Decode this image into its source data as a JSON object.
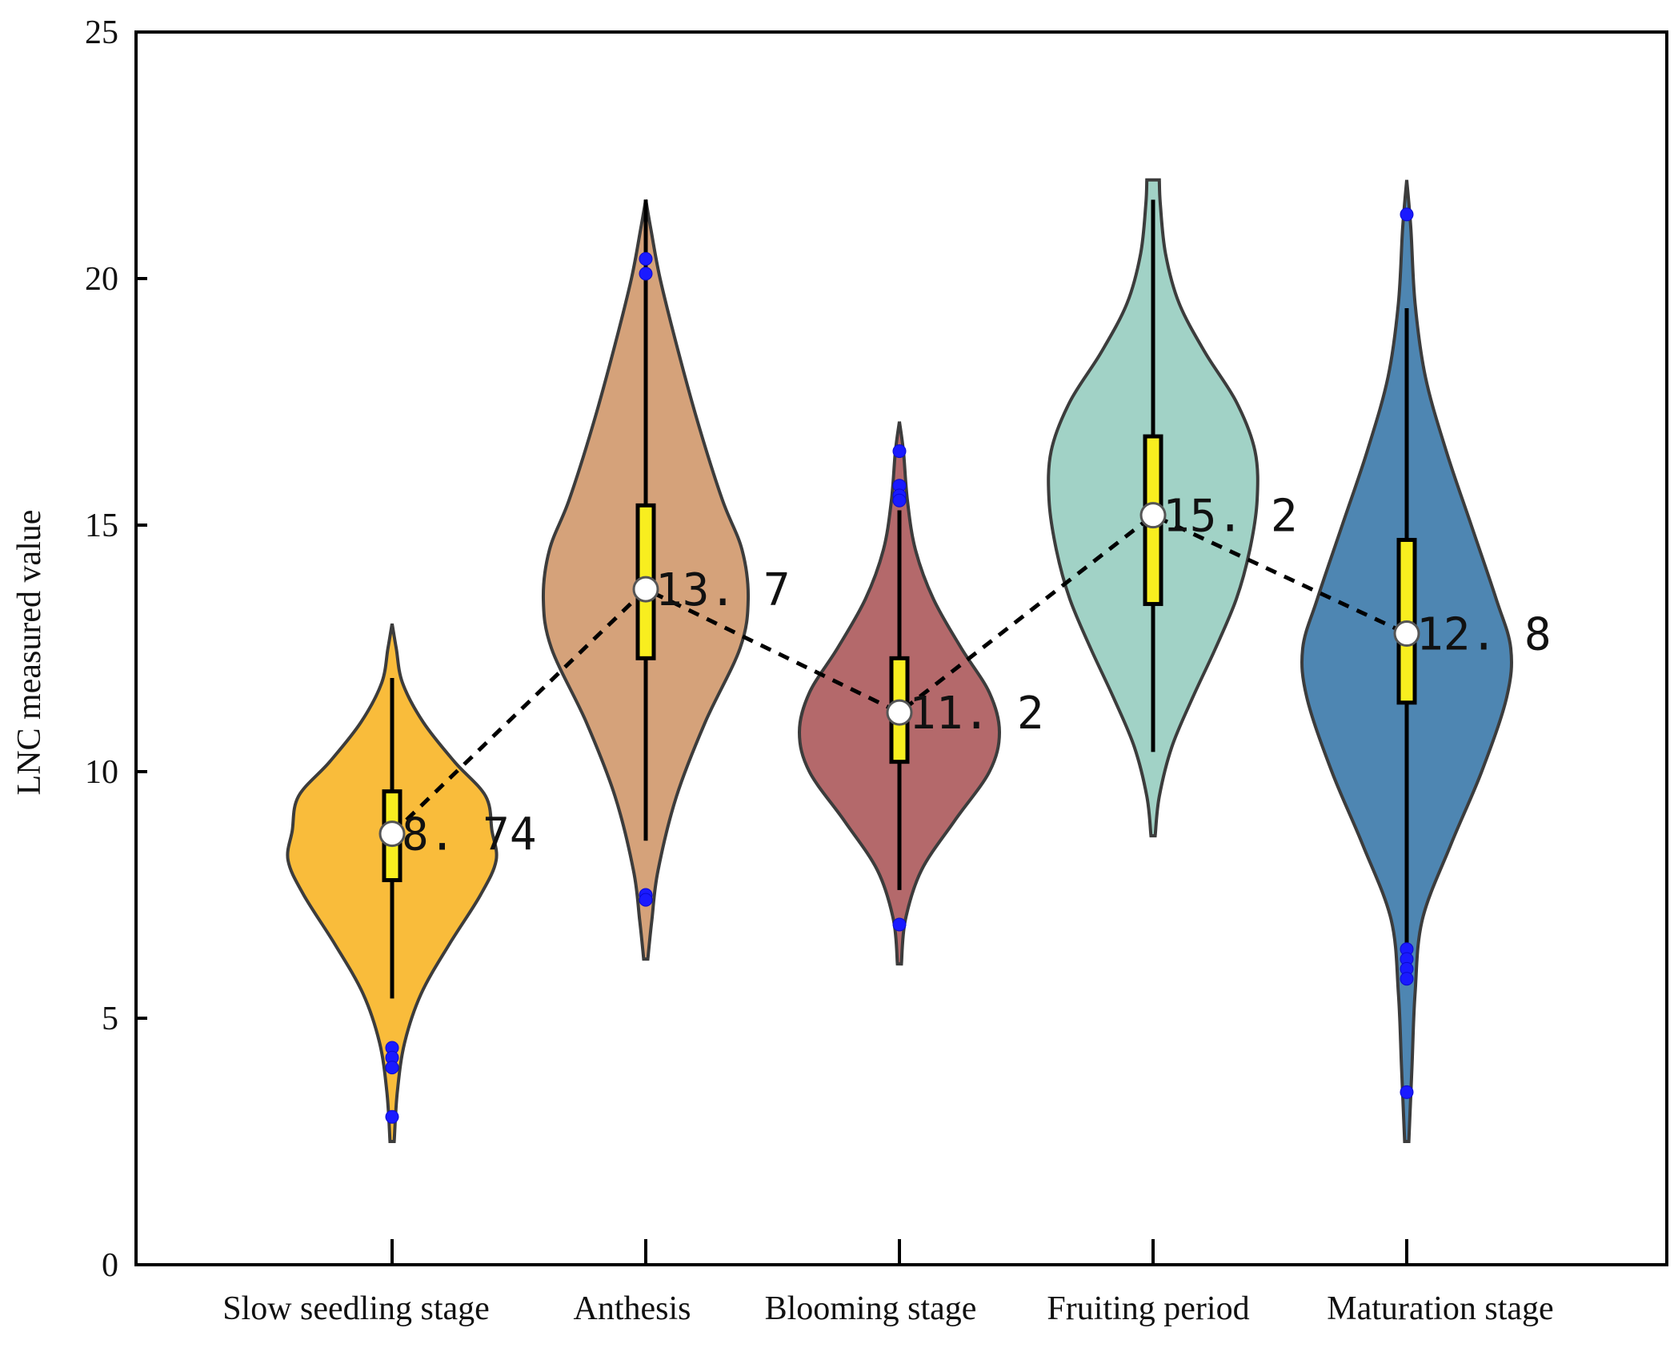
{
  "chart_data": {
    "type": "violin",
    "title": "",
    "xlabel": "",
    "ylabel": "LNC measured value",
    "ylim": [
      0,
      25
    ],
    "yticks": [
      "0",
      "5",
      "10",
      "15",
      "20",
      "25"
    ],
    "categories": [
      "Slow seedling stage",
      "Anthesis",
      "Blooming stage",
      "Fruiting period",
      "Maturation stage"
    ],
    "series": [
      {
        "name": "Slow seedling stage",
        "color": "#f9bc3b",
        "range": [
          2.5,
          13.0
        ],
        "whisker": [
          5.4,
          11.9
        ],
        "q1": 7.8,
        "q3": 9.6,
        "mean": 8.74,
        "mean_label": "8. 74",
        "outliers": [
          4.4,
          4.2,
          4.0,
          3.0
        ],
        "density": [
          [
            2.5,
            0.02
          ],
          [
            3.5,
            0.05
          ],
          [
            4.5,
            0.12
          ],
          [
            5.5,
            0.28
          ],
          [
            6.5,
            0.55
          ],
          [
            7.5,
            0.85
          ],
          [
            8.2,
            1.0
          ],
          [
            8.8,
            0.96
          ],
          [
            9.5,
            0.9
          ],
          [
            10.2,
            0.6
          ],
          [
            11.0,
            0.3
          ],
          [
            11.8,
            0.1
          ],
          [
            12.5,
            0.04
          ],
          [
            13.0,
            0.0
          ]
        ]
      },
      {
        "name": "Anthesis",
        "color": "#d5a27a",
        "range": [
          6.2,
          21.6
        ],
        "whisker": [
          8.6,
          21.6
        ],
        "q1": 12.3,
        "q3": 15.4,
        "mean": 13.7,
        "mean_label": "13. 7",
        "outliers": [
          20.4,
          20.1,
          7.5,
          7.4
        ],
        "density": [
          [
            6.2,
            0.02
          ],
          [
            7.0,
            0.06
          ],
          [
            8.0,
            0.12
          ],
          [
            9.5,
            0.3
          ],
          [
            11.0,
            0.58
          ],
          [
            12.5,
            0.92
          ],
          [
            13.5,
            1.0
          ],
          [
            14.5,
            0.94
          ],
          [
            15.5,
            0.75
          ],
          [
            17.0,
            0.52
          ],
          [
            18.5,
            0.32
          ],
          [
            20.0,
            0.14
          ],
          [
            21.0,
            0.05
          ],
          [
            21.6,
            0.0
          ]
        ]
      },
      {
        "name": "Blooming stage",
        "color": "#b4696b",
        "range": [
          6.1,
          17.1
        ],
        "whisker": [
          7.6,
          15.3
        ],
        "q1": 10.2,
        "q3": 12.3,
        "mean": 11.2,
        "mean_label": "11. 2",
        "outliers": [
          16.5,
          15.8,
          15.6,
          15.5,
          6.9
        ],
        "density": [
          [
            6.1,
            0.02
          ],
          [
            7.0,
            0.06
          ],
          [
            8.0,
            0.22
          ],
          [
            9.0,
            0.55
          ],
          [
            10.0,
            0.9
          ],
          [
            10.8,
            1.0
          ],
          [
            11.6,
            0.9
          ],
          [
            12.5,
            0.62
          ],
          [
            13.5,
            0.34
          ],
          [
            14.5,
            0.16
          ],
          [
            15.5,
            0.08
          ],
          [
            16.5,
            0.04
          ],
          [
            17.1,
            0.0
          ]
        ]
      },
      {
        "name": "Fruiting period",
        "color": "#a1d2c6",
        "range": [
          8.7,
          22.0
        ],
        "whisker": [
          10.4,
          21.6
        ],
        "q1": 13.4,
        "q3": 16.8,
        "mean": 15.2,
        "mean_label": "15. 2",
        "outliers": [],
        "density": [
          [
            8.7,
            0.02
          ],
          [
            9.5,
            0.06
          ],
          [
            10.5,
            0.18
          ],
          [
            11.5,
            0.38
          ],
          [
            12.5,
            0.6
          ],
          [
            13.5,
            0.8
          ],
          [
            14.5,
            0.93
          ],
          [
            15.5,
            1.0
          ],
          [
            16.5,
            0.98
          ],
          [
            17.5,
            0.8
          ],
          [
            18.5,
            0.5
          ],
          [
            19.5,
            0.25
          ],
          [
            20.5,
            0.12
          ],
          [
            21.5,
            0.07
          ],
          [
            22.0,
            0.06
          ]
        ]
      },
      {
        "name": "Maturation stage",
        "color": "#4e86b2",
        "range": [
          2.5,
          22.0
        ],
        "whisker": [
          5.9,
          19.4
        ],
        "q1": 11.4,
        "q3": 14.7,
        "mean": 12.8,
        "mean_label": "12. 8",
        "outliers": [
          21.3,
          6.4,
          6.2,
          6.0,
          5.8,
          3.5
        ],
        "density": [
          [
            2.5,
            0.02
          ],
          [
            4.0,
            0.05
          ],
          [
            5.5,
            0.08
          ],
          [
            7.0,
            0.15
          ],
          [
            8.5,
            0.42
          ],
          [
            10.0,
            0.72
          ],
          [
            11.5,
            0.96
          ],
          [
            12.5,
            1.0
          ],
          [
            13.5,
            0.86
          ],
          [
            15.0,
            0.62
          ],
          [
            16.5,
            0.38
          ],
          [
            18.0,
            0.18
          ],
          [
            19.5,
            0.08
          ],
          [
            21.0,
            0.04
          ],
          [
            22.0,
            0.0
          ]
        ]
      }
    ],
    "mean_line": [
      8.74,
      13.7,
      11.2,
      15.2,
      12.8
    ],
    "styles": {
      "box_fill": "#f8ee1f",
      "outlier_color": "#1a1aff",
      "mean_marker_fill": "#ffffff",
      "violin_stroke": "#3c3c3c",
      "axis_color": "#000000"
    }
  }
}
